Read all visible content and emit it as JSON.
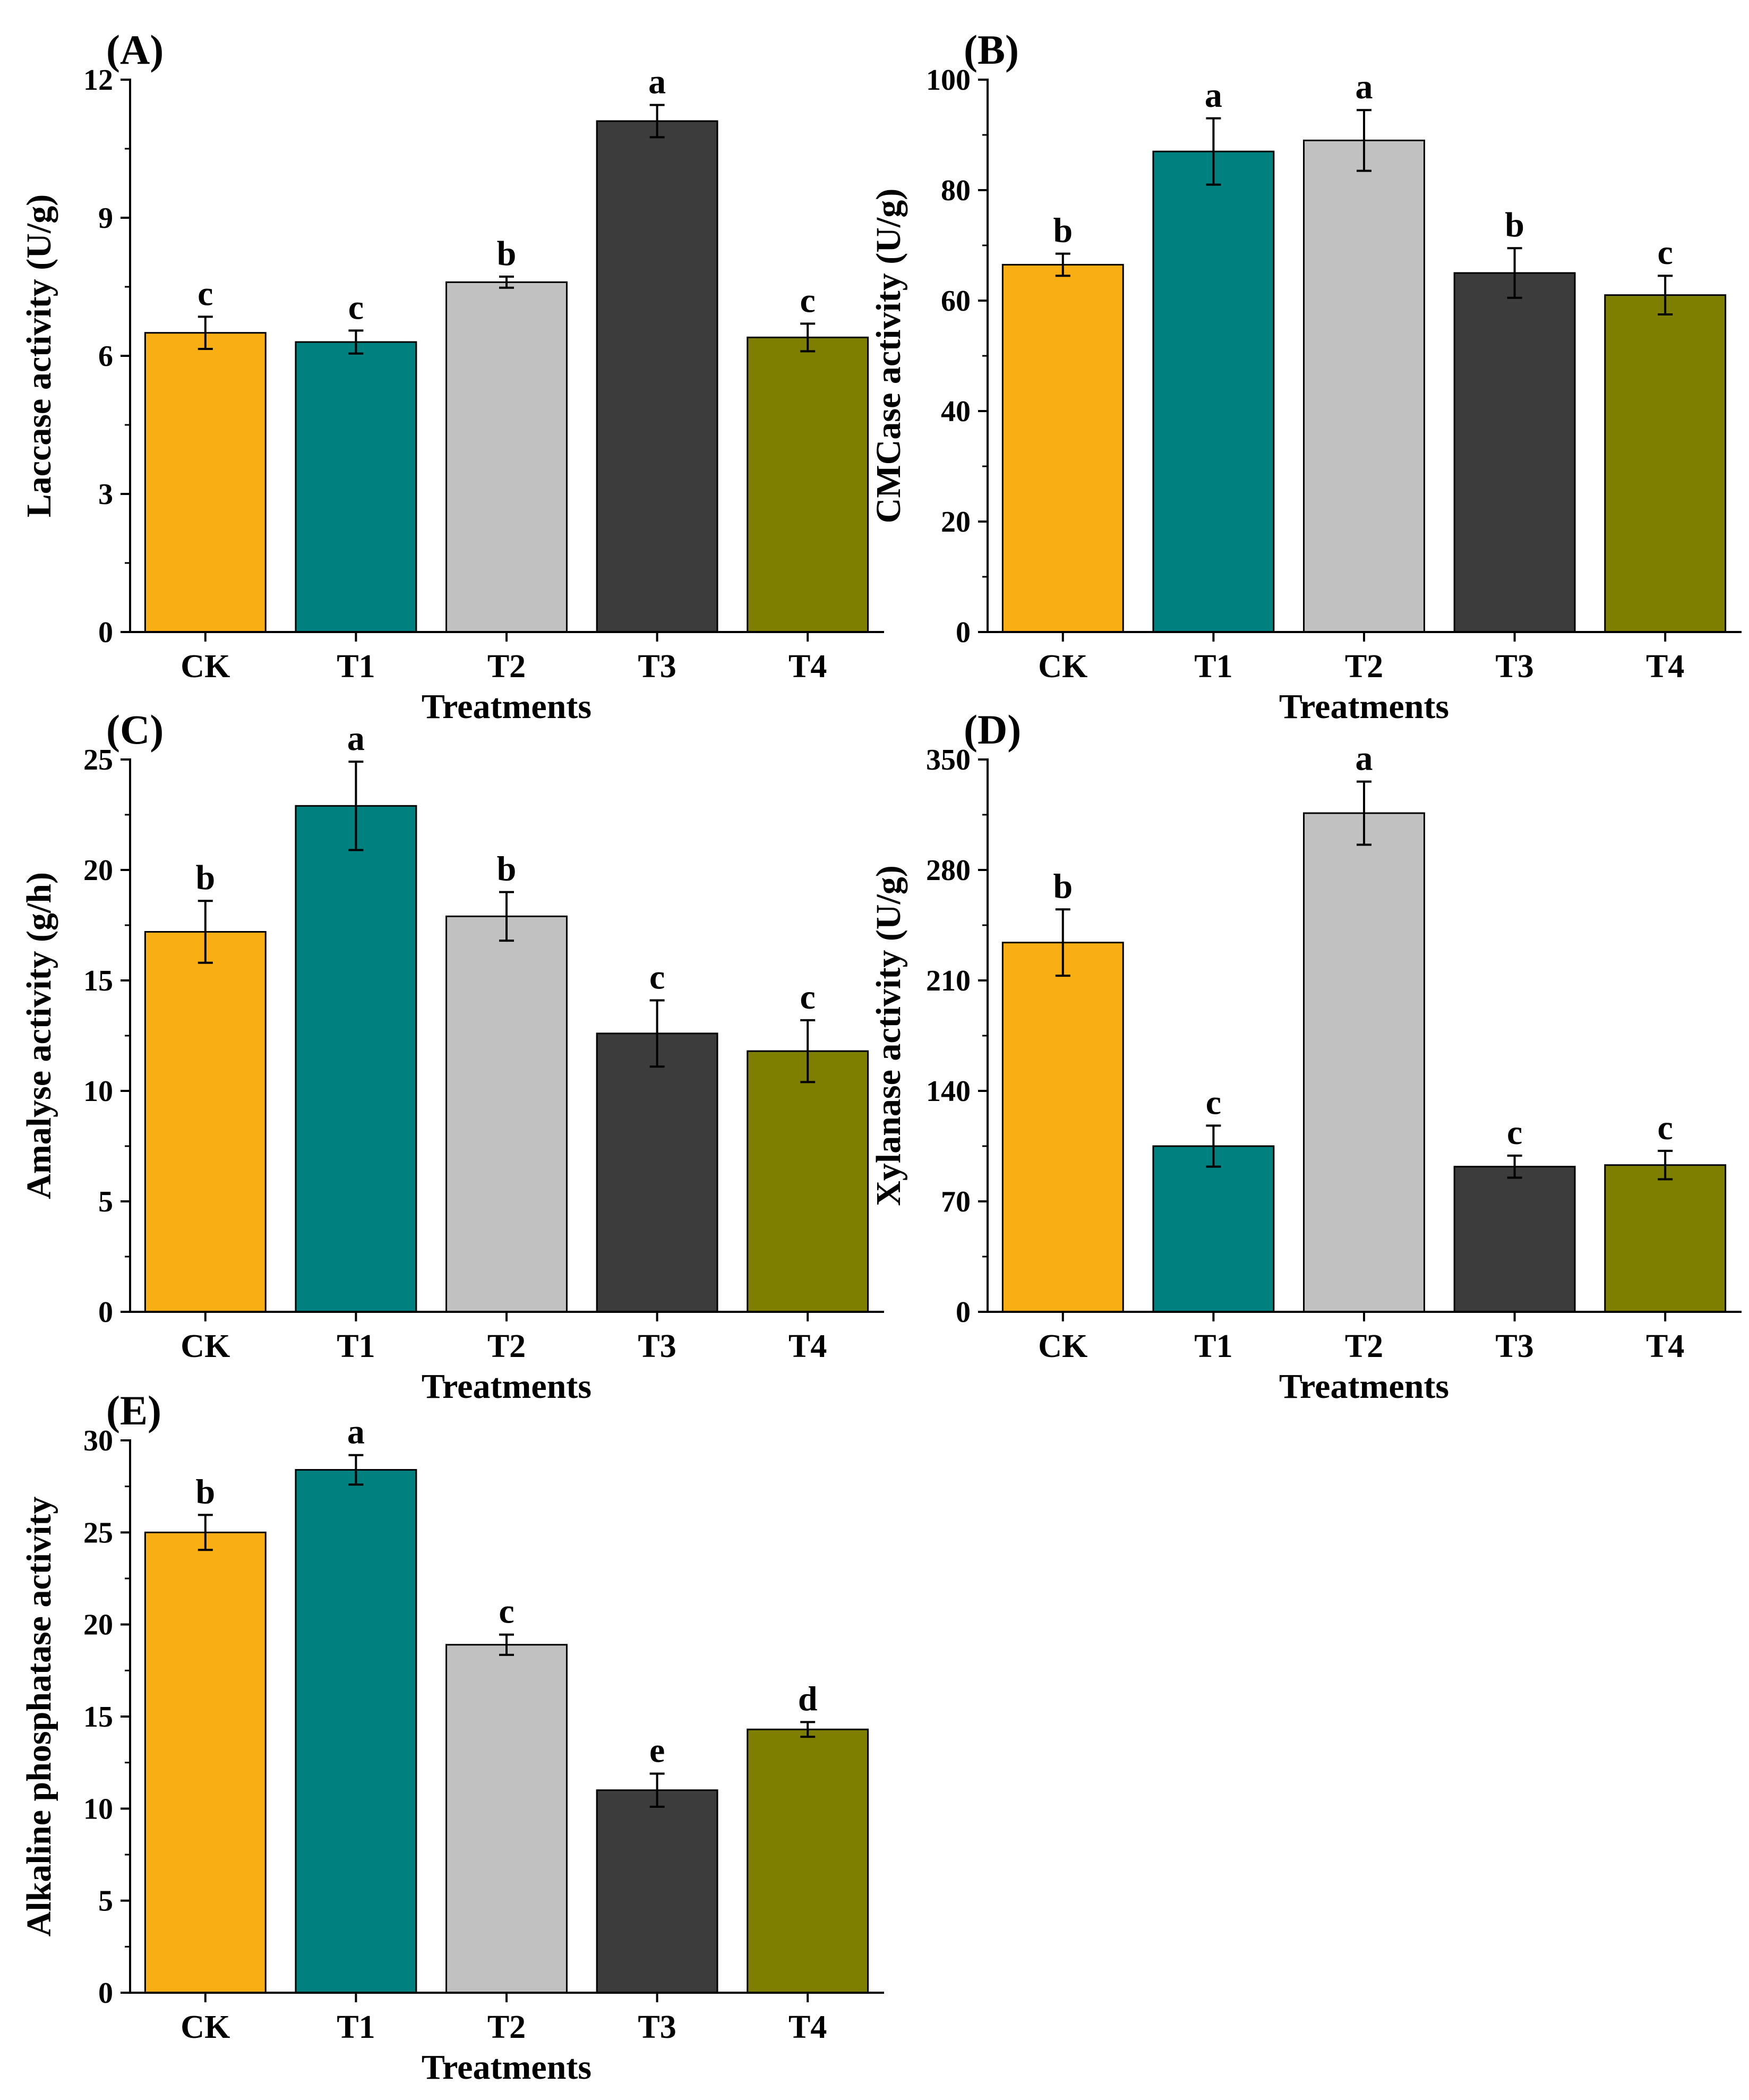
{
  "figure": {
    "categories": [
      "CK",
      "T1",
      "T2",
      "T3",
      "T4"
    ],
    "colors": {
      "CK": "#F9AE14",
      "T1": "#00807F",
      "T2": "#C1C1C1",
      "T3": "#3C3C3C",
      "T4": "#7E7F00"
    }
  },
  "chart_data": [
    {
      "id": "A",
      "type": "bar",
      "panel_label": "(A)",
      "title": "",
      "xlabel": "Treatments",
      "ylabel": "Laccase activity (U/g)",
      "categories": [
        "CK",
        "T1",
        "T2",
        "T3",
        "T4"
      ],
      "values": [
        6.5,
        6.3,
        7.6,
        11.1,
        6.4
      ],
      "errors": [
        0.35,
        0.25,
        0.12,
        0.35,
        0.3
      ],
      "significance": [
        "c",
        "c",
        "b",
        "a",
        "c"
      ],
      "ylim": [
        0,
        12
      ],
      "yticks": [
        0,
        3,
        6,
        9,
        12
      ],
      "ytick_labels": [
        "0",
        "3",
        "6",
        "9",
        "12"
      ]
    },
    {
      "id": "B",
      "type": "bar",
      "panel_label": "(B)",
      "title": "",
      "xlabel": "Treatments",
      "ylabel": "CMCase activity (U/g)",
      "categories": [
        "CK",
        "T1",
        "T2",
        "T3",
        "T4"
      ],
      "values": [
        66.5,
        87,
        89,
        65,
        61
      ],
      "errors": [
        2,
        6,
        5.5,
        4.5,
        3.5
      ],
      "significance": [
        "b",
        "a",
        "a",
        "b",
        "c"
      ],
      "ylim": [
        0,
        100
      ],
      "yticks": [
        0,
        20,
        40,
        60,
        80,
        100
      ],
      "ytick_labels": [
        "0",
        "20",
        "40",
        "60",
        "80",
        "100"
      ]
    },
    {
      "id": "C",
      "type": "bar",
      "panel_label": "(C)",
      "title": "",
      "xlabel": "Treatments",
      "ylabel": "Amalyse activity (g/h)",
      "categories": [
        "CK",
        "T1",
        "T2",
        "T3",
        "T4"
      ],
      "values": [
        17.2,
        22.9,
        17.9,
        12.6,
        11.8
      ],
      "errors": [
        1.4,
        2.0,
        1.1,
        1.5,
        1.4
      ],
      "significance": [
        "b",
        "a",
        "b",
        "c",
        "c"
      ],
      "ylim": [
        0,
        25
      ],
      "yticks": [
        0,
        5,
        10,
        15,
        20,
        25
      ],
      "ytick_labels": [
        "0",
        "5",
        "10",
        "15",
        "20",
        "25"
      ]
    },
    {
      "id": "D",
      "type": "bar",
      "panel_label": "(D)",
      "title": "",
      "xlabel": "Treatments",
      "ylabel": "Xylanase activity (U/g)",
      "categories": [
        "CK",
        "T1",
        "T2",
        "T3",
        "T4"
      ],
      "values": [
        234,
        105,
        316,
        92,
        93
      ],
      "errors": [
        21,
        13,
        20,
        7,
        9
      ],
      "significance": [
        "b",
        "c",
        "a",
        "c",
        "c"
      ],
      "ylim": [
        0,
        350
      ],
      "yticks": [
        0,
        70,
        140,
        210,
        280,
        350
      ],
      "ytick_labels": [
        "0",
        "70",
        "140",
        "210",
        "280",
        "350"
      ]
    },
    {
      "id": "E",
      "type": "bar",
      "panel_label": "(E)",
      "title": "",
      "xlabel": "Treatments",
      "ylabel": "Alkaline phosphatase activity",
      "categories": [
        "CK",
        "T1",
        "T2",
        "T3",
        "T4"
      ],
      "values": [
        25.0,
        28.4,
        18.9,
        11.0,
        14.3
      ],
      "errors": [
        0.95,
        0.8,
        0.55,
        0.9,
        0.4
      ],
      "significance": [
        "b",
        "a",
        "c",
        "e",
        "d"
      ],
      "ylim": [
        0,
        30
      ],
      "yticks": [
        0,
        5,
        10,
        15,
        20,
        25,
        30
      ],
      "ytick_labels": [
        "0",
        "5",
        "10",
        "15",
        "20",
        "25",
        "30"
      ]
    }
  ]
}
